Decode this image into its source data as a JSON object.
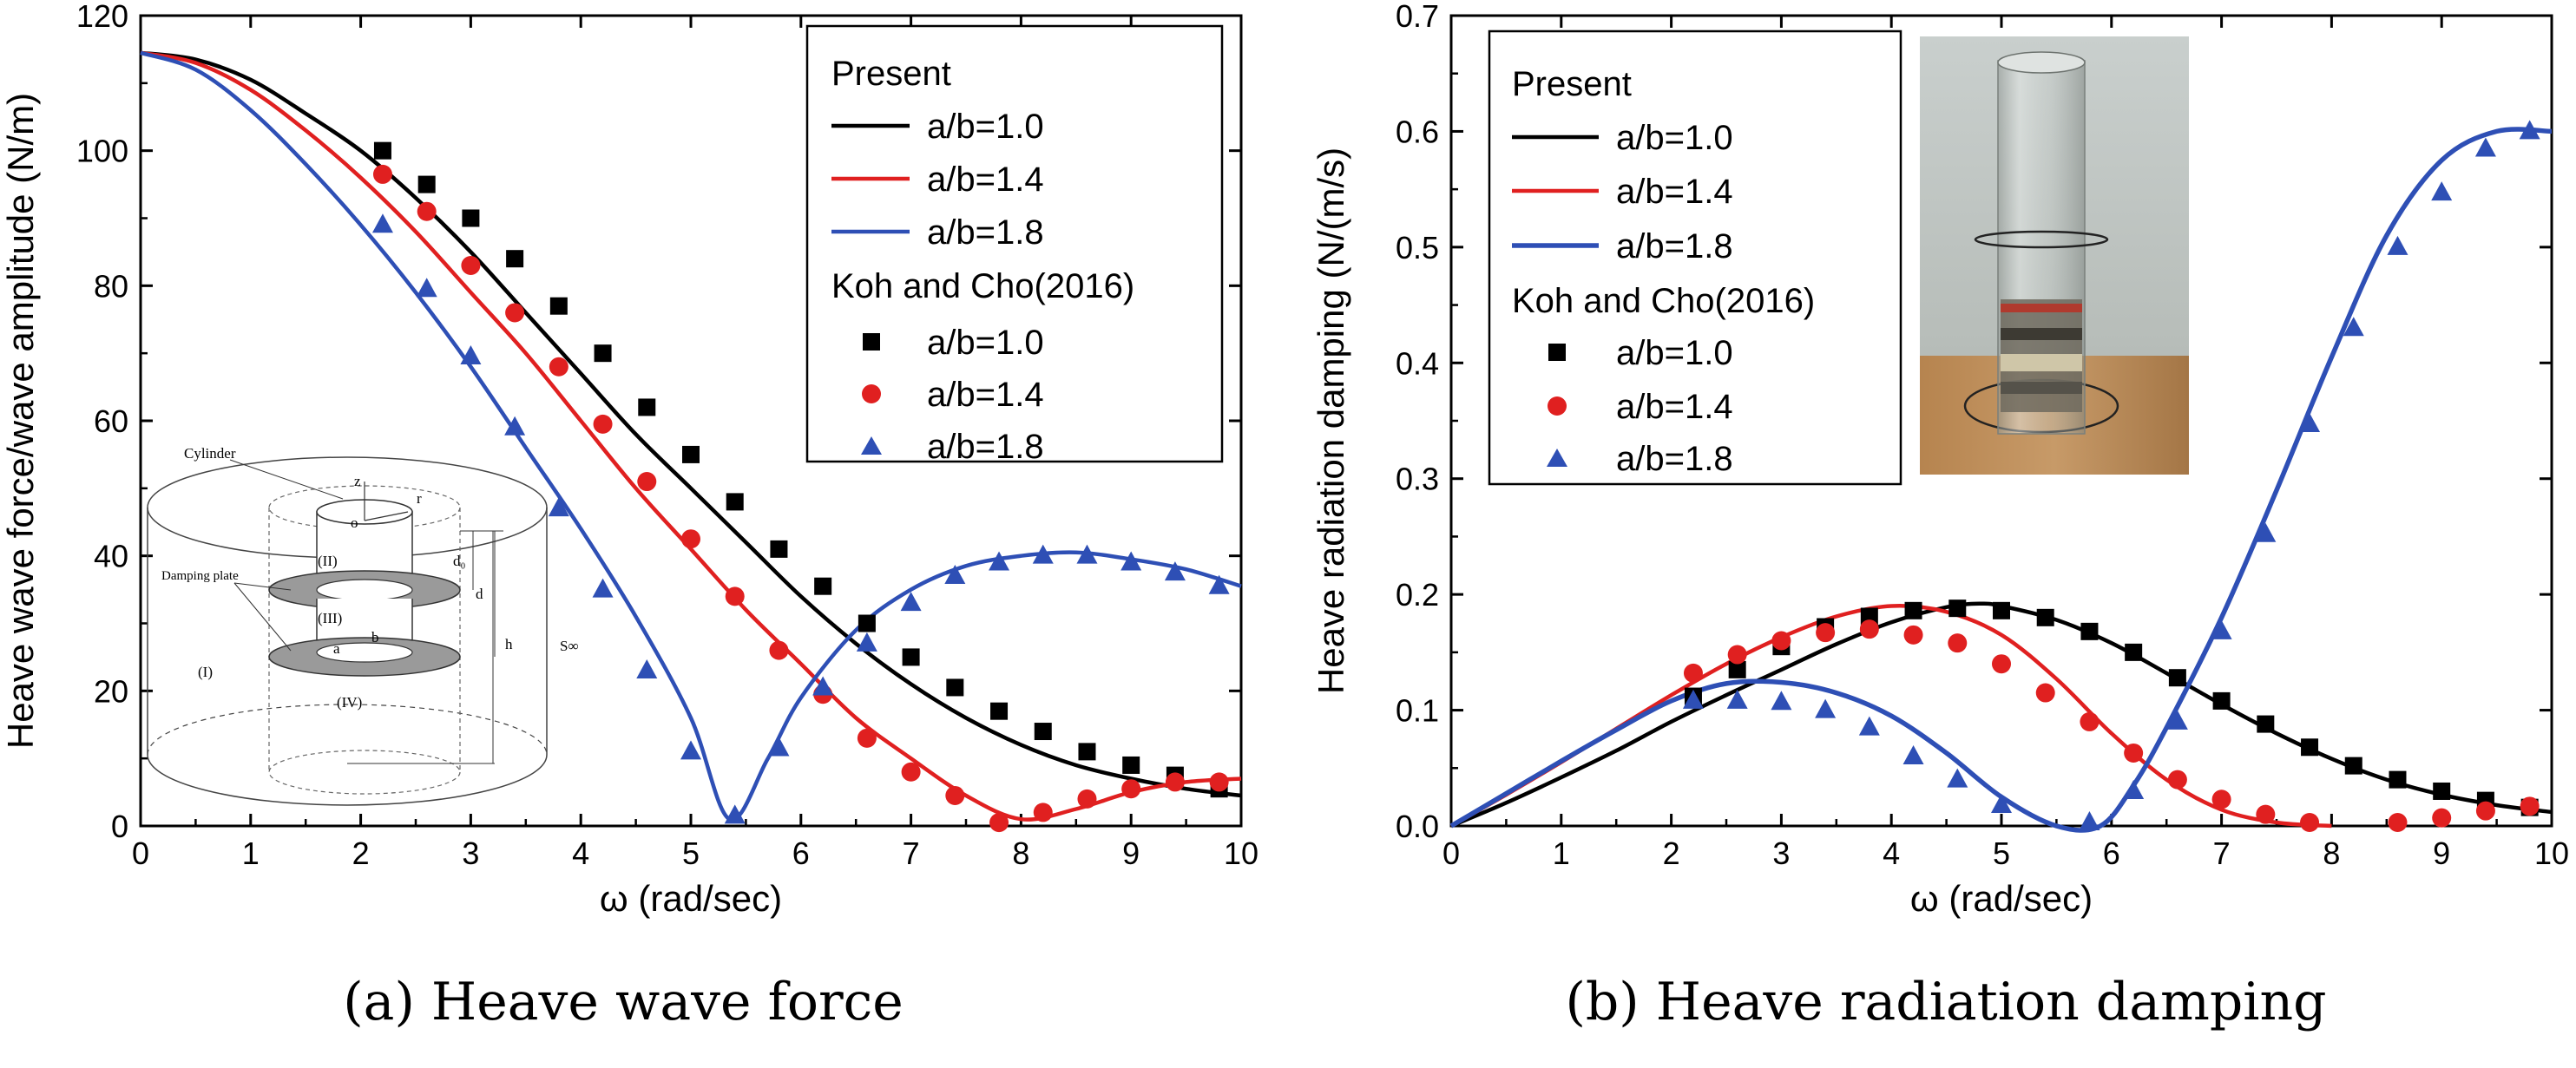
{
  "chart_data": [
    {
      "type": "line",
      "panel": "a",
      "caption": "(a) Heave wave force",
      "xlabel": "ω (rad/sec)",
      "ylabel": "Heave wave force/wave amplitude (N/m)",
      "xlim": [
        0,
        10
      ],
      "ylim": [
        0,
        120
      ],
      "xticks": [
        0,
        1,
        2,
        3,
        4,
        5,
        6,
        7,
        8,
        9,
        10
      ],
      "yticks": [
        0,
        20,
        40,
        60,
        80,
        100,
        120
      ],
      "legend": {
        "position": "top-right",
        "group1": "Present",
        "group2": "Koh and Cho(2016)",
        "labels": [
          "a/b=1.0",
          "a/b=1.4",
          "a/b=1.8"
        ]
      },
      "series": [
        {
          "name": "Present a/b=1.0",
          "kind": "line",
          "color": "#000000",
          "x": [
            0,
            0.5,
            1,
            1.5,
            2,
            2.5,
            3,
            3.5,
            4,
            4.5,
            5,
            5.5,
            6,
            6.5,
            7,
            7.5,
            8,
            8.5,
            9,
            9.5,
            10
          ],
          "y": [
            114.5,
            113.5,
            110.5,
            105.5,
            100,
            93,
            85,
            76,
            67,
            58,
            50,
            42,
            34,
            27,
            21,
            16,
            12,
            9,
            7,
            5.5,
            4.5
          ]
        },
        {
          "name": "Present a/b=1.4",
          "kind": "line",
          "color": "#e02020",
          "x": [
            0,
            0.5,
            1,
            1.5,
            2,
            2.5,
            3,
            3.5,
            4,
            4.5,
            5,
            5.5,
            6,
            6.5,
            7,
            7.5,
            8,
            8.5,
            9,
            9.5,
            10
          ],
          "y": [
            114.5,
            113,
            109,
            103,
            96,
            88,
            79,
            70,
            60,
            50,
            41,
            32,
            24,
            16,
            10,
            4.5,
            1,
            2.5,
            5,
            6.5,
            7
          ]
        },
        {
          "name": "Present a/b=1.8",
          "kind": "line",
          "color": "#2e4fb5",
          "x": [
            0,
            0.5,
            1,
            1.5,
            2,
            2.5,
            3,
            3.5,
            4,
            4.5,
            5,
            5.35,
            5.7,
            6,
            6.5,
            7,
            7.5,
            8,
            8.5,
            9,
            9.5,
            10
          ],
          "y": [
            114.5,
            112,
            106,
            98,
            89,
            79,
            68,
            56,
            44,
            31,
            16,
            1,
            10,
            19,
            29,
            35,
            38.5,
            40,
            40.5,
            39.5,
            38,
            35.5
          ]
        },
        {
          "name": "Koh and Cho(2016) a/b=1.0",
          "kind": "marker",
          "marker": "square",
          "color": "#000000",
          "x": [
            2.2,
            2.6,
            3.0,
            3.4,
            3.8,
            4.2,
            4.6,
            5.0,
            5.4,
            5.8,
            6.2,
            6.6,
            7.0,
            7.4,
            7.8,
            8.2,
            8.6,
            9.0,
            9.4,
            9.8
          ],
          "y": [
            100,
            95,
            90,
            84,
            77,
            70,
            62,
            55,
            48,
            41,
            35.5,
            30,
            25,
            20.5,
            17,
            14,
            11,
            9,
            7.5,
            5.5
          ]
        },
        {
          "name": "Koh and Cho(2016) a/b=1.4",
          "kind": "marker",
          "marker": "circle",
          "color": "#e02020",
          "x": [
            2.2,
            2.6,
            3.0,
            3.4,
            3.8,
            4.2,
            4.6,
            5.0,
            5.4,
            5.8,
            6.2,
            6.6,
            7.0,
            7.4,
            7.8,
            8.2,
            8.6,
            9.0,
            9.4,
            9.8
          ],
          "y": [
            96.5,
            91,
            83,
            76,
            68,
            59.5,
            51,
            42.5,
            34,
            26,
            19.5,
            13,
            8,
            4.5,
            0.5,
            2,
            4,
            5.5,
            6.5,
            6.5
          ]
        },
        {
          "name": "Koh and Cho(2016) a/b=1.8",
          "kind": "marker",
          "marker": "triangle",
          "color": "#2e4fb5",
          "x": [
            2.2,
            2.6,
            3.0,
            3.4,
            3.8,
            4.2,
            4.6,
            5.0,
            5.4,
            5.8,
            6.2,
            6.6,
            7.0,
            7.4,
            7.8,
            8.2,
            8.6,
            9.0,
            9.4,
            9.8
          ],
          "y": [
            89,
            79.5,
            69.5,
            59,
            47,
            35,
            23,
            11,
            1.5,
            11.5,
            20.5,
            27,
            33,
            37,
            39,
            40,
            40,
            39,
            37.5,
            35.5
          ]
        }
      ],
      "inset": {
        "kind": "schematic",
        "labels": [
          "Cylinder",
          "z",
          "r",
          "o",
          "Damping plate",
          "(I)",
          "(II)",
          "(III)",
          "(IV)",
          "a",
          "b",
          "d₀",
          "d",
          "h",
          "S∞"
        ]
      }
    },
    {
      "type": "line",
      "panel": "b",
      "caption": "(b) Heave radiation damping",
      "xlabel": "ω (rad/sec)",
      "ylabel": "Heave radiation damping (N/(m/s)",
      "xlim": [
        0,
        10
      ],
      "ylim": [
        0,
        0.7
      ],
      "xticks": [
        0,
        1,
        2,
        3,
        4,
        5,
        6,
        7,
        8,
        9,
        10
      ],
      "yticks": [
        0.0,
        0.1,
        0.2,
        0.3,
        0.4,
        0.5,
        0.6,
        0.7
      ],
      "ytick_labels": [
        "0.0",
        "0.1",
        "0.2",
        "0.3",
        "0.4",
        "0.5",
        "0.6",
        "0.7"
      ],
      "legend": {
        "position": "top-left",
        "group1": "Present",
        "group2": "Koh and Cho(2016)",
        "labels": [
          "a/b=1.0",
          "a/b=1.4",
          "a/b=1.8"
        ]
      },
      "series": [
        {
          "name": "Present a/b=1.0",
          "kind": "line",
          "color": "#000000",
          "x": [
            0,
            0.5,
            1,
            1.5,
            2,
            2.5,
            3,
            3.5,
            4,
            4.5,
            4.8,
            5,
            5.5,
            6,
            6.5,
            7,
            7.5,
            8,
            8.5,
            9,
            9.5,
            10
          ],
          "y": [
            0,
            0.02,
            0.042,
            0.065,
            0.09,
            0.113,
            0.135,
            0.157,
            0.176,
            0.189,
            0.192,
            0.19,
            0.178,
            0.158,
            0.132,
            0.105,
            0.08,
            0.058,
            0.04,
            0.027,
            0.018,
            0.012
          ]
        },
        {
          "name": "Present a/b=1.4",
          "kind": "line",
          "color": "#e02020",
          "x": [
            0,
            0.5,
            1,
            1.5,
            2,
            2.5,
            3,
            3.5,
            4,
            4.5,
            5,
            5.5,
            6,
            6.5,
            7,
            7.5,
            8
          ],
          "y": [
            0,
            0.027,
            0.055,
            0.084,
            0.113,
            0.14,
            0.163,
            0.181,
            0.19,
            0.185,
            0.165,
            0.127,
            0.08,
            0.04,
            0.014,
            0.003,
            0
          ]
        },
        {
          "name": "Present a/b=1.8",
          "kind": "line",
          "color": "#2e4fb5",
          "x": [
            0,
            0.5,
            1,
            1.5,
            2,
            2.5,
            3,
            3.5,
            4,
            4.5,
            5,
            5.5,
            5.9,
            6.2,
            6.5,
            7,
            7.5,
            8,
            8.5,
            9,
            9.5,
            10
          ],
          "y": [
            0,
            0.028,
            0.056,
            0.083,
            0.108,
            0.123,
            0.124,
            0.115,
            0.095,
            0.063,
            0.025,
            0,
            0,
            0.035,
            0.085,
            0.18,
            0.29,
            0.405,
            0.51,
            0.575,
            0.6,
            0.6
          ]
        },
        {
          "name": "Koh and Cho(2016) a/b=1.0",
          "kind": "marker",
          "marker": "square",
          "color": "#000000",
          "x": [
            2.2,
            2.6,
            3.0,
            3.4,
            3.8,
            4.2,
            4.6,
            5.0,
            5.4,
            5.8,
            6.2,
            6.6,
            7.0,
            7.4,
            7.8,
            8.2,
            8.6,
            9.0,
            9.4,
            9.8
          ],
          "y": [
            0.112,
            0.135,
            0.155,
            0.172,
            0.181,
            0.186,
            0.188,
            0.186,
            0.18,
            0.168,
            0.15,
            0.128,
            0.108,
            0.088,
            0.068,
            0.052,
            0.04,
            0.03,
            0.022,
            0.016
          ]
        },
        {
          "name": "Koh and Cho(2016) a/b=1.4",
          "kind": "marker",
          "marker": "circle",
          "color": "#e02020",
          "x": [
            2.2,
            2.6,
            3.0,
            3.4,
            3.8,
            4.2,
            4.6,
            5.0,
            5.4,
            5.8,
            6.2,
            6.6,
            7.0,
            7.4,
            7.8,
            8.6,
            9.0,
            9.4,
            9.8
          ],
          "y": [
            0.132,
            0.148,
            0.16,
            0.167,
            0.17,
            0.165,
            0.158,
            0.14,
            0.115,
            0.09,
            0.063,
            0.04,
            0.023,
            0.01,
            0.003,
            0.003,
            0.007,
            0.013,
            0.017
          ]
        },
        {
          "name": "Koh and Cho(2016) a/b=1.8",
          "kind": "marker",
          "marker": "triangle",
          "color": "#2e4fb5",
          "x": [
            2.2,
            2.6,
            3.0,
            3.4,
            3.8,
            4.2,
            4.6,
            5.0,
            5.8,
            6.2,
            6.6,
            7.0,
            7.4,
            7.8,
            8.2,
            8.6,
            9.0,
            9.4,
            9.8
          ],
          "y": [
            0.108,
            0.108,
            0.107,
            0.1,
            0.085,
            0.06,
            0.04,
            0.018,
            0.003,
            0.03,
            0.09,
            0.168,
            0.252,
            0.347,
            0.43,
            0.5,
            0.547,
            0.585,
            0.6
          ]
        }
      ],
      "inset": {
        "kind": "photo",
        "subject": "transparent cylinder with damping plates"
      }
    }
  ]
}
